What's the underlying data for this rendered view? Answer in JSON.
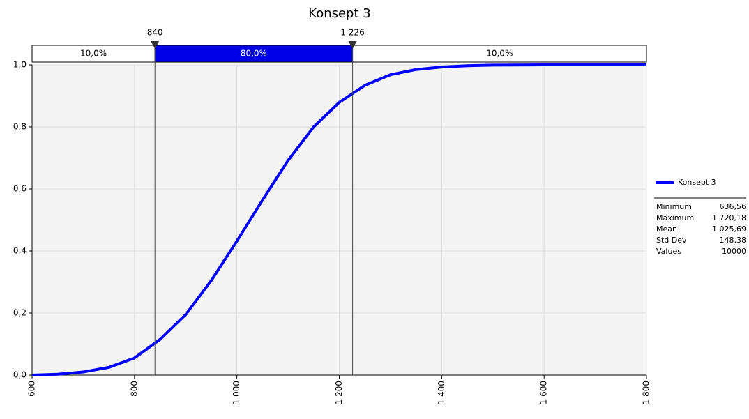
{
  "chart_data": {
    "type": "line",
    "title": "Konsept 3",
    "x": [
      600,
      650,
      700,
      750,
      800,
      850,
      900,
      950,
      1000,
      1050,
      1100,
      1150,
      1200,
      1250,
      1300,
      1350,
      1400,
      1450,
      1500,
      1600,
      1700,
      1800
    ],
    "series": [
      {
        "name": "Konsept 3",
        "color": "#0000ff",
        "values": [
          0,
          0.003,
          0.01,
          0.025,
          0.055,
          0.115,
          0.195,
          0.305,
          0.432,
          0.564,
          0.692,
          0.8,
          0.879,
          0.934,
          0.968,
          0.985,
          0.993,
          0.997,
          0.999,
          1,
          1,
          1
        ]
      }
    ],
    "xlim": [
      600,
      1800
    ],
    "xticks": [
      600,
      800,
      {
        "value": 1000,
        "label": "1 000"
      },
      {
        "value": 1200,
        "label": "1 200"
      },
      {
        "value": 1400,
        "label": "1 400"
      },
      {
        "value": 1600,
        "label": "1 600"
      },
      {
        "value": 1800,
        "label": "1 800"
      }
    ],
    "ylim": [
      0,
      1
    ],
    "yticks": [
      {
        "value": 0,
        "label": "0,0"
      },
      {
        "value": 0.2,
        "label": "0,2"
      },
      {
        "value": 0.4,
        "label": "0,4"
      },
      {
        "value": 0.6,
        "label": "0,6"
      },
      {
        "value": 0.8,
        "label": "0,8"
      },
      {
        "value": 1,
        "label": "1,0"
      }
    ],
    "grid": true,
    "markers": [
      840,
      {
        "value": 1226,
        "label": "1 226"
      }
    ],
    "bands": [
      {
        "value": 10,
        "label": "10,0%"
      },
      {
        "value": 80,
        "label": "80,0%"
      },
      {
        "value": 10,
        "label": "10,0%"
      }
    ],
    "band_color": "#0000e6",
    "stats": [
      {
        "label": "Minimum",
        "value": "636,56"
      },
      {
        "label": "Maximum",
        "value": "1 720,18"
      },
      {
        "label": "Mean",
        "value": "1 025,69"
      },
      {
        "label": "Std Dev",
        "value": "148,38"
      },
      {
        "label": "Values",
        "value": "10000"
      }
    ]
  }
}
